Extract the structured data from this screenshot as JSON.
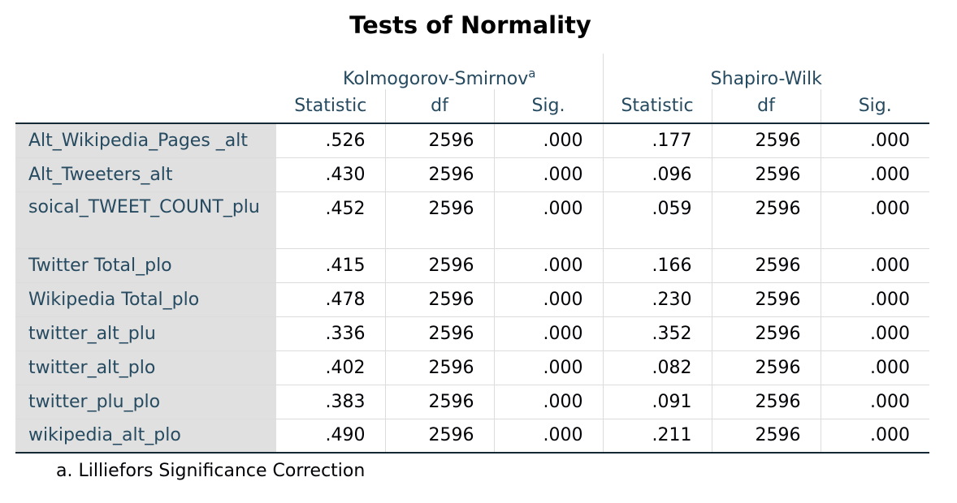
{
  "title": "Tests of Normality",
  "groups": {
    "ks": {
      "label": "Kolmogorov-Smirnov",
      "footnote_mark": "a"
    },
    "sw": {
      "label": "Shapiro-Wilk"
    }
  },
  "columns": [
    "Statistic",
    "df",
    "Sig.",
    "Statistic",
    "df",
    "Sig."
  ],
  "rows": [
    {
      "label": "Alt_Wikipedia_Pages _alt",
      "values": [
        ".526",
        "2596",
        ".000",
        ".177",
        "2596",
        ".000"
      ]
    },
    {
      "label": "Alt_Tweeters_alt",
      "values": [
        ".430",
        "2596",
        ".000",
        ".096",
        "2596",
        ".000"
      ]
    },
    {
      "label": "soical_TWEET_COUNT_plu",
      "values": [
        ".452",
        "2596",
        ".000",
        ".059",
        "2596",
        ".000"
      ]
    },
    {
      "label": "Twitter Total_plo",
      "values": [
        ".415",
        "2596",
        ".000",
        ".166",
        "2596",
        ".000"
      ]
    },
    {
      "label": "Wikipedia Total_plo",
      "values": [
        ".478",
        "2596",
        ".000",
        ".230",
        "2596",
        ".000"
      ]
    },
    {
      "label": "twitter_alt_plu",
      "values": [
        ".336",
        "2596",
        ".000",
        ".352",
        "2596",
        ".000"
      ]
    },
    {
      "label": "twitter_alt_plo",
      "values": [
        ".402",
        "2596",
        ".000",
        ".082",
        "2596",
        ".000"
      ]
    },
    {
      "label": "twitter_plu_plo",
      "values": [
        ".383",
        "2596",
        ".000",
        ".091",
        "2596",
        ".000"
      ]
    },
    {
      "label": "wikipedia_alt_plo",
      "values": [
        ".490",
        "2596",
        ".000",
        ".211",
        "2596",
        ".000"
      ]
    }
  ],
  "footnote": "a. Lilliefors Significance Correction",
  "colors": {
    "header_text": "#264a60",
    "value_text": "#010205",
    "label_background": "#e0e0e0",
    "rule_dark": "#152935",
    "rule_light": "#dcdcdc"
  }
}
